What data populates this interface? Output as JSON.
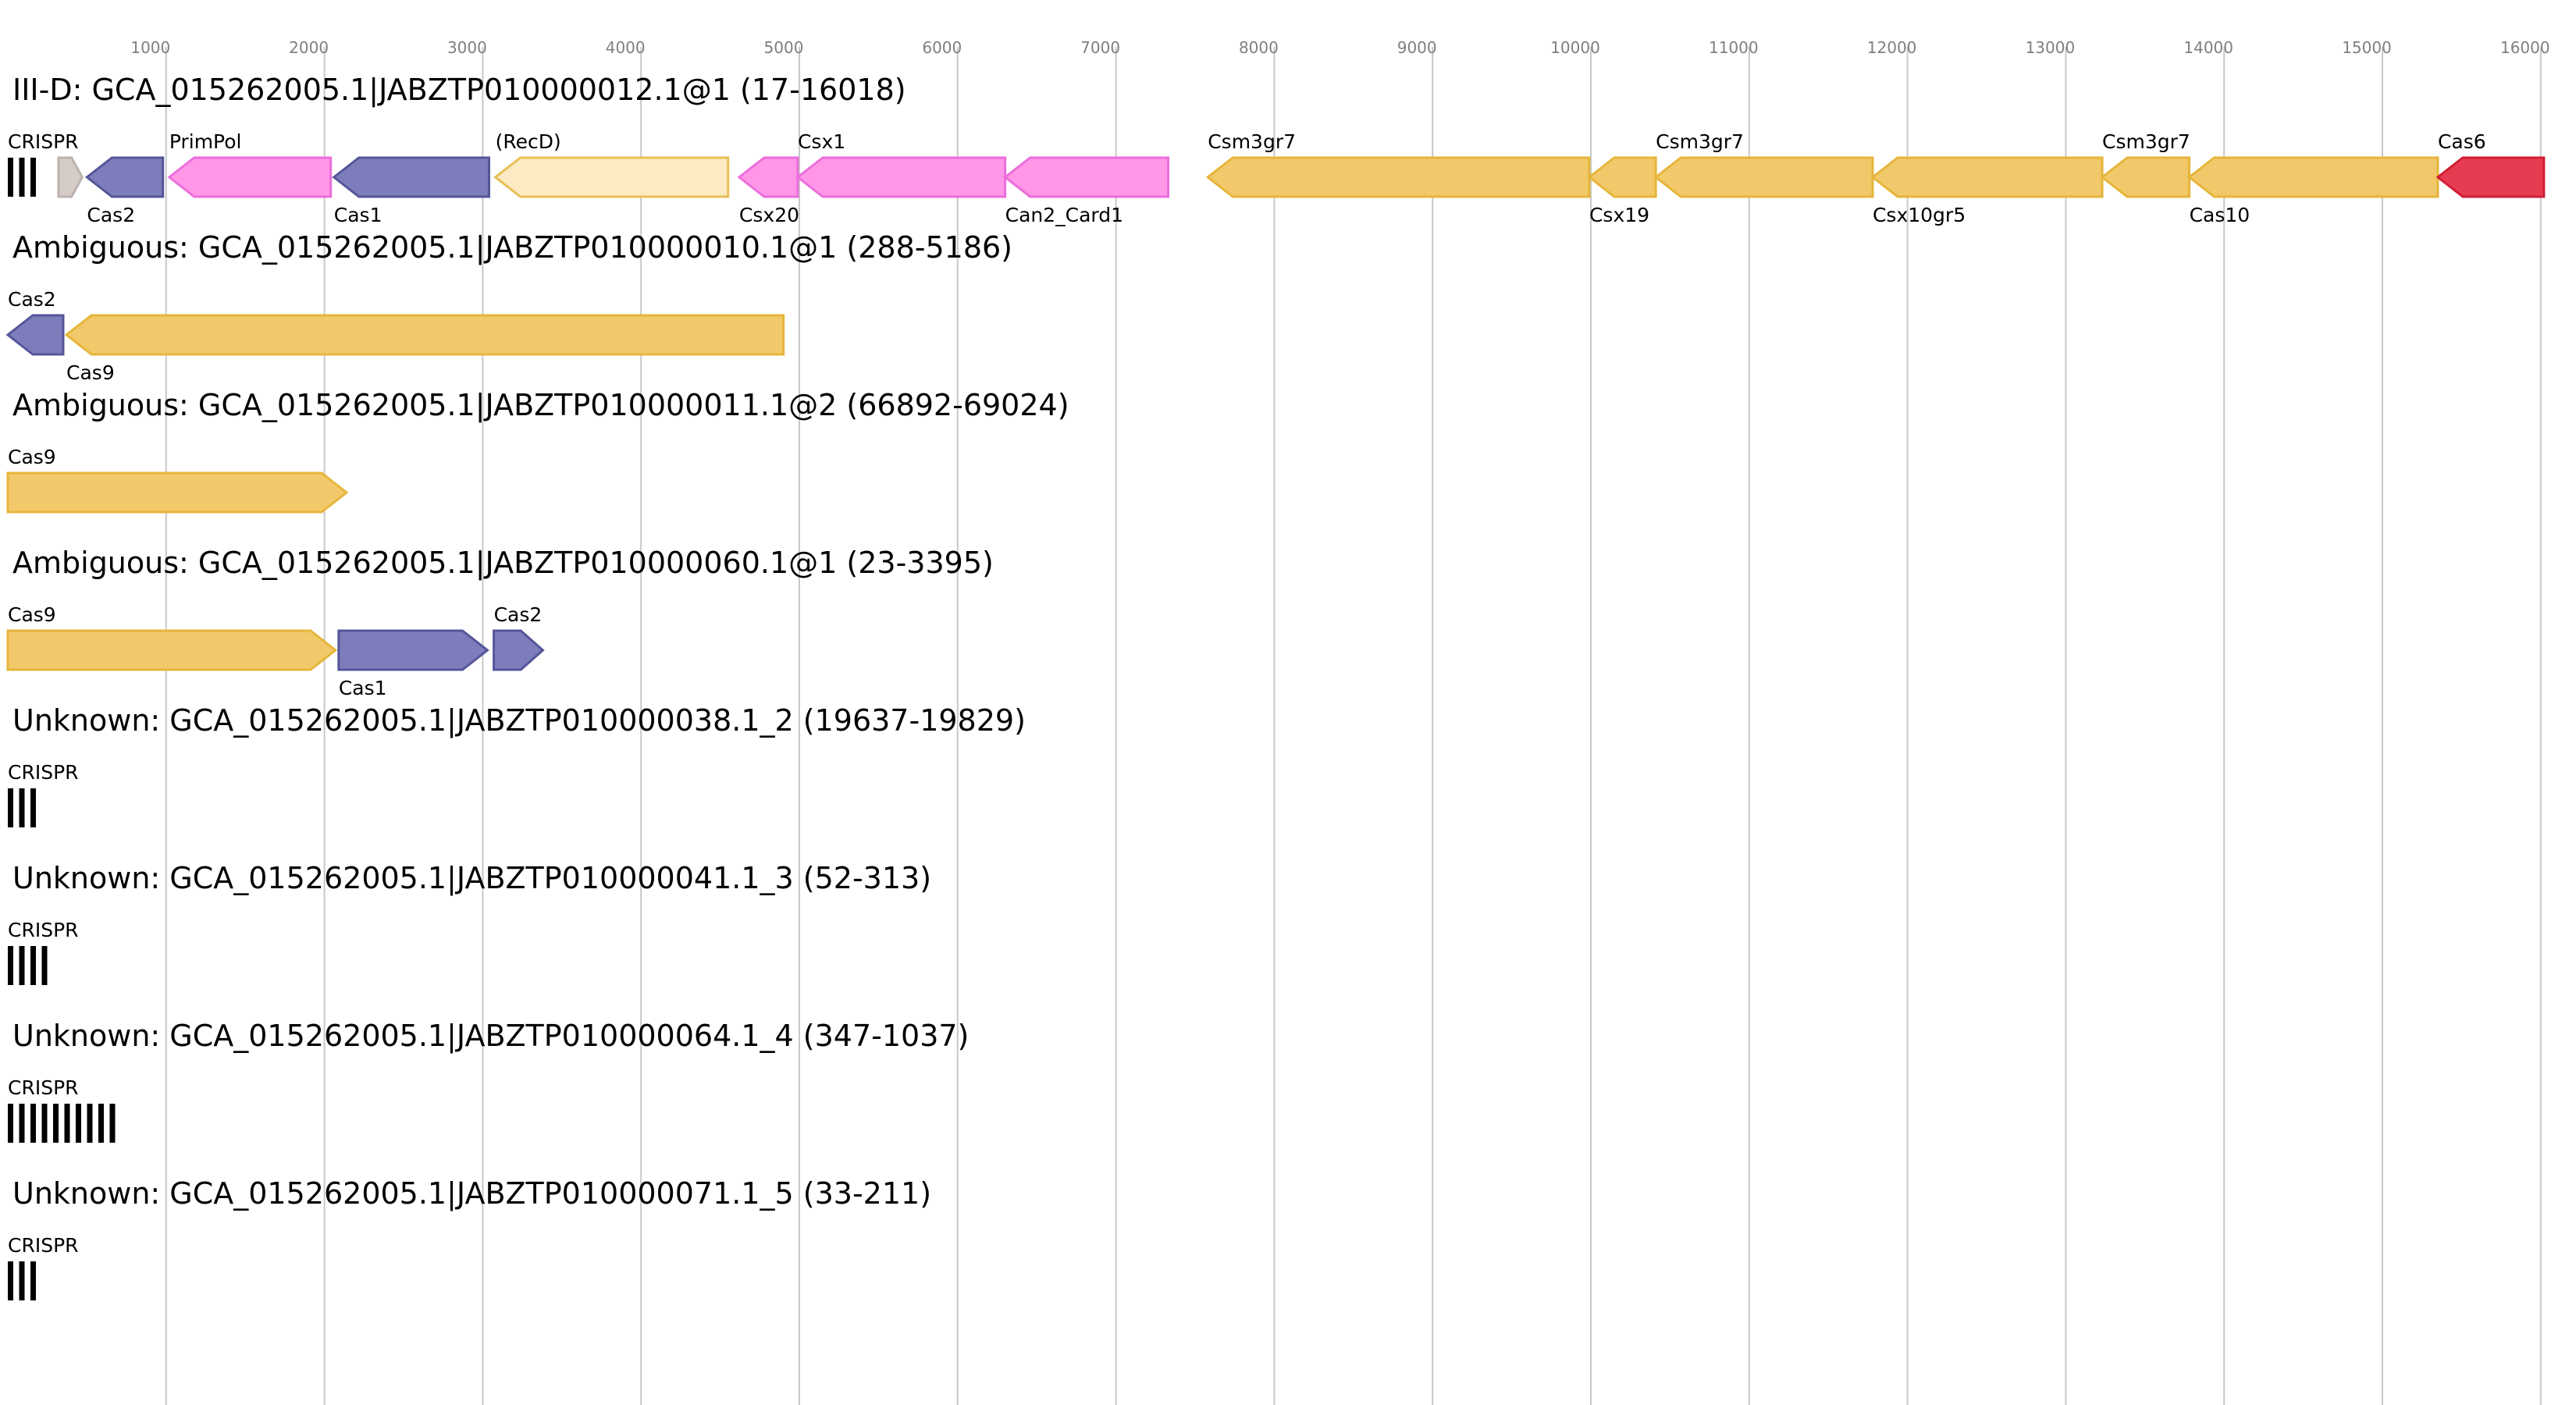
{
  "colors": {
    "gold": "#f1c96a",
    "gold_stroke": "#e6b53a",
    "pink": "#ff96e8",
    "pink_stroke": "#ec6edb",
    "blue": "#7d7dbb",
    "blue_stroke": "#55559a",
    "red": "#e53c52",
    "red_stroke": "#d21e34",
    "pale": "#fbeac2",
    "pale_stroke": "#e9bf55",
    "gray": "#d5cbc7",
    "gray_stroke": "#bdb2ad",
    "grid": "#c8c8c8",
    "crispr": "#000000"
  },
  "chart_data": {
    "type": "gene-locus-map",
    "x_axis": {
      "range": [
        0,
        16100
      ],
      "ticks": [
        1000,
        2000,
        3000,
        4000,
        5000,
        6000,
        7000,
        8000,
        9000,
        10000,
        11000,
        12000,
        13000,
        14000,
        15000,
        16000
      ],
      "tick_labels": [
        "1000",
        "2000",
        "3000",
        "4000",
        "5000",
        "6000",
        "7000",
        "8000",
        "9000",
        "10000",
        "11000",
        "12000",
        "13000",
        "14000",
        "15000",
        "16000"
      ],
      "gridlines": true
    },
    "tracks": [
      {
        "title": "III-D: GCA_015262005.1|JABZTP010000012.1@1 (17-16018)",
        "genes": [
          {
            "label": "",
            "start": 320,
            "end": 470,
            "strand": "+",
            "color": "gray"
          },
          {
            "label": "Cas2",
            "start": 500,
            "end": 980,
            "strand": "-",
            "color": "blue",
            "label_pos": "below"
          },
          {
            "label": "PrimPol",
            "start": 1020,
            "end": 2040,
            "strand": "-",
            "color": "pink",
            "label_pos": "above"
          },
          {
            "label": "Cas1",
            "start": 2060,
            "end": 3040,
            "strand": "-",
            "color": "blue",
            "label_pos": "below"
          },
          {
            "label": "(RecD)",
            "start": 3080,
            "end": 4550,
            "strand": "-",
            "color": "pale",
            "label_pos": "above"
          },
          {
            "label": "Csx20",
            "start": 4620,
            "end": 4990,
            "strand": "-",
            "color": "pink",
            "label_pos": "below"
          },
          {
            "label": "Csx1",
            "start": 4990,
            "end": 6300,
            "strand": "-",
            "color": "pink",
            "label_pos": "above"
          },
          {
            "label": "Can2_Card1",
            "start": 6300,
            "end": 7330,
            "strand": "-",
            "color": "pink",
            "label_pos": "below"
          },
          {
            "label": "Csm3gr7",
            "start": 7580,
            "end": 9990,
            "strand": "-",
            "color": "gold",
            "label_pos": "above"
          },
          {
            "label": "Csx19",
            "start": 9990,
            "end": 10410,
            "strand": "-",
            "color": "gold",
            "label_pos": "below"
          },
          {
            "label": "Csm3gr7",
            "start": 10410,
            "end": 11780,
            "strand": "-",
            "color": "gold",
            "label_pos": "above"
          },
          {
            "label": "Csx10gr5",
            "start": 11780,
            "end": 13230,
            "strand": "-",
            "color": "gold",
            "label_pos": "below"
          },
          {
            "label": "Csm3gr7",
            "start": 13230,
            "end": 13780,
            "strand": "-",
            "color": "gold",
            "label_pos": "above"
          },
          {
            "label": "Cas10",
            "start": 13780,
            "end": 15350,
            "strand": "-",
            "color": "gold",
            "label_pos": "below"
          },
          {
            "label": "Cas6",
            "start": 15350,
            "end": 16020,
            "strand": "-",
            "color": "red",
            "label_pos": "above"
          }
        ],
        "crisprs": [
          {
            "label": "CRISPR",
            "start": 0,
            "end": 170,
            "repeats": 3
          }
        ]
      },
      {
        "title": "Ambiguous: GCA_015262005.1|JABZTP010000010.1@1 (288-5186)",
        "genes": [
          {
            "label": "Cas2",
            "start": 0,
            "end": 350,
            "strand": "-",
            "color": "blue",
            "label_pos": "above"
          },
          {
            "label": "Cas9",
            "start": 370,
            "end": 4900,
            "strand": "-",
            "color": "gold",
            "label_pos": "below"
          }
        ],
        "crisprs": []
      },
      {
        "title": "Ambiguous: GCA_015262005.1|JABZTP010000011.1@2 (66892-69024)",
        "genes": [
          {
            "label": "Cas9",
            "start": 0,
            "end": 2140,
            "strand": "+",
            "color": "gold",
            "label_pos": "above"
          }
        ],
        "crisprs": []
      },
      {
        "title": "Ambiguous: GCA_015262005.1|JABZTP010000060.1@1 (23-3395)",
        "genes": [
          {
            "label": "Cas9",
            "start": 0,
            "end": 2070,
            "strand": "+",
            "color": "gold",
            "label_pos": "above"
          },
          {
            "label": "Cas1",
            "start": 2090,
            "end": 3030,
            "strand": "+",
            "color": "blue",
            "label_pos": "below"
          },
          {
            "label": "Cas2",
            "start": 3070,
            "end": 3380,
            "strand": "+",
            "color": "blue",
            "label_pos": "above"
          }
        ],
        "crisprs": []
      },
      {
        "title": "Unknown: GCA_015262005.1|JABZTP010000038.1_2 (19637-19829)",
        "genes": [],
        "crisprs": [
          {
            "label": "CRISPR",
            "start": 0,
            "end": 180,
            "repeats": 3
          }
        ]
      },
      {
        "title": "Unknown: GCA_015262005.1|JABZTP010000041.1_3 (52-313)",
        "genes": [],
        "crisprs": [
          {
            "label": "CRISPR",
            "start": 0,
            "end": 260,
            "repeats": 4
          }
        ]
      },
      {
        "title": "Unknown: GCA_015262005.1|JABZTP010000064.1_4 (347-1037)",
        "genes": [],
        "crisprs": [
          {
            "label": "CRISPR",
            "start": 0,
            "end": 690,
            "repeats": 10
          }
        ]
      },
      {
        "title": "Unknown: GCA_015262005.1|JABZTP010000071.1_5 (33-211)",
        "genes": [],
        "crisprs": [
          {
            "label": "CRISPR",
            "start": 0,
            "end": 180,
            "repeats": 3
          }
        ]
      }
    ]
  }
}
